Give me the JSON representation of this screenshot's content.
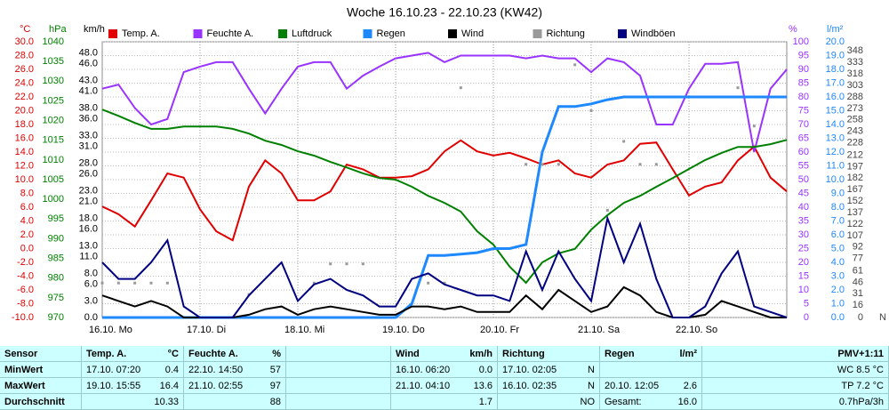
{
  "chart_data": {
    "type": "line",
    "title": "Woche 16.10.23 - 22.10.23 (KW42)",
    "grid": true,
    "xlim": [
      0,
      168
    ],
    "xticks": [
      {
        "value": 0,
        "label": "16.10. Mo"
      },
      {
        "value": 24,
        "label": "17.10. Di"
      },
      {
        "value": 48,
        "label": "18.10. Mi"
      },
      {
        "value": 72,
        "label": "19.10. Do"
      },
      {
        "value": 96,
        "label": "20.10. Fr"
      },
      {
        "value": 120,
        "label": "21.10. Sa"
      },
      {
        "value": 144,
        "label": "22.10. So"
      }
    ],
    "x": [
      0,
      4,
      8,
      12,
      16,
      20,
      24,
      28,
      32,
      36,
      40,
      44,
      48,
      52,
      56,
      60,
      64,
      68,
      72,
      76,
      80,
      84,
      88,
      92,
      96,
      100,
      104,
      108,
      112,
      116,
      120,
      124,
      128,
      132,
      136,
      140,
      144,
      148,
      152,
      156,
      160,
      164,
      168
    ],
    "axes": {
      "temp": {
        "label": "°C",
        "color": "#e00000",
        "lim": [
          -10,
          30
        ],
        "ticks": [
          {
            "value": -10,
            "label": "-10.0"
          },
          {
            "value": -8,
            "label": "-8.0"
          },
          {
            "value": -6,
            "label": "-6.0"
          },
          {
            "value": -4,
            "label": "-4.0"
          },
          {
            "value": -2,
            "label": "-2.0"
          },
          {
            "value": 0,
            "label": "0.0"
          },
          {
            "value": 2,
            "label": "2.0"
          },
          {
            "value": 4,
            "label": "4.0"
          },
          {
            "value": 6,
            "label": "6.0"
          },
          {
            "value": 8,
            "label": "8.0"
          },
          {
            "value": 10,
            "label": "10.0"
          },
          {
            "value": 12,
            "label": "12.0"
          },
          {
            "value": 14,
            "label": "14.0"
          },
          {
            "value": 16,
            "label": "16.0"
          },
          {
            "value": 18,
            "label": "18.0"
          },
          {
            "value": 20,
            "label": "20.0"
          },
          {
            "value": 22,
            "label": "22.0"
          },
          {
            "value": 24,
            "label": "24.0"
          },
          {
            "value": 26,
            "label": "26.0"
          },
          {
            "value": 28,
            "label": "28.0"
          },
          {
            "value": 30,
            "label": "30.0"
          }
        ]
      },
      "pressure": {
        "label": "hPa",
        "color": "#008000",
        "lim": [
          970,
          1040
        ],
        "ticks": [
          970,
          975,
          980,
          985,
          990,
          995,
          1000,
          1005,
          1010,
          1015,
          1020,
          1025,
          1030,
          1035,
          1040
        ]
      },
      "wind": {
        "label": "km/h",
        "color": "#000000",
        "lim": [
          0,
          50
        ],
        "ticks": [
          {
            "value": 0,
            "label": "0.0"
          },
          {
            "value": 3,
            "label": "3.0"
          },
          {
            "value": 6,
            "label": "6.0"
          },
          {
            "value": 8,
            "label": "8.0"
          },
          {
            "value": 11,
            "label": "11.0"
          },
          {
            "value": 13,
            "label": "13.0"
          },
          {
            "value": 16,
            "label": "16.0"
          },
          {
            "value": 18,
            "label": "18.0"
          },
          {
            "value": 21,
            "label": "21.0"
          },
          {
            "value": 23,
            "label": "23.0"
          },
          {
            "value": 26,
            "label": "26.0"
          },
          {
            "value": 28,
            "label": "28.0"
          },
          {
            "value": 31,
            "label": "31.0"
          },
          {
            "value": 33,
            "label": "33.0"
          },
          {
            "value": 36,
            "label": "36.0"
          },
          {
            "value": 38,
            "label": "38.0"
          },
          {
            "value": 41,
            "label": "41.0"
          },
          {
            "value": 43,
            "label": "43.0"
          },
          {
            "value": 46,
            "label": "46.0"
          },
          {
            "value": 48,
            "label": "48.0"
          }
        ]
      },
      "humidity": {
        "label": "%",
        "color": "#9933ff",
        "lim": [
          0,
          100
        ],
        "ticks": [
          0,
          5,
          10,
          15,
          20,
          25,
          30,
          35,
          40,
          45,
          50,
          55,
          60,
          65,
          70,
          75,
          80,
          85,
          90,
          95,
          100
        ]
      },
      "rain": {
        "label": "l/m²",
        "color": "#1e88ff",
        "lim": [
          0,
          20
        ],
        "ticks": [
          {
            "value": 0,
            "label": "0.0"
          },
          {
            "value": 1,
            "label": "1.0"
          },
          {
            "value": 2,
            "label": "2.0"
          },
          {
            "value": 3,
            "label": "3.0"
          },
          {
            "value": 4,
            "label": "4.0"
          },
          {
            "value": 5,
            "label": "5.0"
          },
          {
            "value": 6,
            "label": "6.0"
          },
          {
            "value": 7,
            "label": "7.0"
          },
          {
            "value": 8,
            "label": "8.0"
          },
          {
            "value": 9,
            "label": "9.0"
          },
          {
            "value": 10,
            "label": "10.0"
          },
          {
            "value": 11,
            "label": "11.0"
          },
          {
            "value": 12,
            "label": "12.0"
          },
          {
            "value": 13,
            "label": "13.0"
          },
          {
            "value": 14,
            "label": "14.0"
          },
          {
            "value": 15,
            "label": "15.0"
          },
          {
            "value": 16,
            "label": "16.0"
          },
          {
            "value": 17,
            "label": "17.0"
          },
          {
            "value": 18,
            "label": "18.0"
          },
          {
            "value": 19,
            "label": "19.0"
          },
          {
            "value": 20,
            "label": "20.0"
          }
        ]
      },
      "direction": {
        "label": "N",
        "color": "#444444",
        "lim": [
          0,
          360
        ],
        "ticks": [
          0,
          16,
          31,
          46,
          61,
          77,
          92,
          107,
          122,
          137,
          152,
          167,
          182,
          197,
          212,
          228,
          243,
          258,
          273,
          288,
          303,
          318,
          333,
          348
        ]
      }
    },
    "series": [
      {
        "name": "Temp. A.",
        "color": "#e00000",
        "axis": "temp",
        "values": [
          6.1,
          5,
          3.2,
          7,
          10.9,
          10.3,
          5.7,
          2.5,
          1.2,
          9,
          12.8,
          10.9,
          7,
          7,
          8.3,
          12.2,
          11.5,
          10.3,
          10.3,
          10.5,
          11.5,
          14.1,
          15.7,
          14.1,
          13.5,
          13.9,
          13.1,
          12.2,
          12.8,
          10.9,
          10.3,
          12.2,
          12.8,
          15.2,
          15.4,
          11.5,
          7.7,
          9,
          9.6,
          12.8,
          14.8,
          10.3,
          8.3
        ]
      },
      {
        "name": "Feuchte A.",
        "color": "#9933ff",
        "axis": "humidity",
        "values": [
          83,
          84.5,
          76,
          70,
          72,
          89,
          91,
          92.6,
          92.6,
          83,
          74,
          83,
          91,
          92.6,
          92.6,
          83,
          87.7,
          91,
          94,
          95,
          96,
          92.6,
          95,
          95,
          95,
          95,
          94,
          95,
          94,
          94,
          89,
          94,
          92.6,
          87.7,
          70,
          70,
          83,
          92,
          92,
          92.6,
          60,
          83,
          90
        ]
      },
      {
        "name": "Luftdruck",
        "color": "#008000",
        "axis": "pressure",
        "values": [
          1022.8,
          1021.2,
          1019.4,
          1017.9,
          1017.9,
          1018.5,
          1018.5,
          1018.5,
          1017.9,
          1016.7,
          1014.9,
          1013.8,
          1012.2,
          1011.1,
          1009.5,
          1008.1,
          1006.6,
          1005.4,
          1005,
          1003.2,
          1000.9,
          999.1,
          996.9,
          991.9,
          988.5,
          982.9,
          978.8,
          984,
          986.3,
          987.4,
          992.3,
          996,
          999.1,
          1000.9,
          1003.2,
          1005.4,
          1007.7,
          1010,
          1011.8,
          1013.3,
          1013.3,
          1014,
          1015.1
        ]
      },
      {
        "name": "Regen",
        "color": "#1e88ff",
        "axis": "rain",
        "values": [
          0,
          0,
          0,
          0,
          0,
          0,
          0,
          0,
          0,
          0,
          0,
          0,
          0,
          0,
          0,
          0,
          0,
          0,
          0,
          1,
          4.5,
          4.5,
          4.6,
          4.7,
          5,
          5,
          5.3,
          12,
          15.3,
          15.3,
          15.5,
          15.8,
          16,
          16,
          16,
          16,
          16,
          16,
          16,
          16,
          16,
          16,
          16
        ]
      },
      {
        "name": "Wind",
        "color": "#000000",
        "axis": "wind",
        "values": [
          4,
          3,
          2,
          3,
          2,
          0,
          0,
          0,
          0,
          0.5,
          1.5,
          2,
          0.5,
          1.5,
          2,
          1.5,
          1,
          0.5,
          0.5,
          2,
          2,
          1.5,
          2,
          1,
          1,
          1,
          4,
          1.5,
          5,
          3,
          1,
          2,
          5.5,
          4,
          1,
          0,
          0,
          0.5,
          3,
          2,
          1,
          0,
          0
        ]
      },
      {
        "name": "Richtung",
        "color": "#999999",
        "axis": "direction",
        "marker": "dots",
        "values": [
          45,
          45,
          45,
          45,
          45,
          null,
          null,
          null,
          null,
          30,
          null,
          null,
          null,
          45,
          70,
          70,
          70,
          null,
          null,
          null,
          45,
          45,
          300,
          null,
          null,
          null,
          200,
          200,
          200,
          330,
          270,
          140,
          230,
          200,
          200,
          null,
          null,
          null,
          null,
          300,
          250,
          null,
          null
        ]
      },
      {
        "name": "Windböen",
        "color": "#000080",
        "axis": "wind",
        "values": [
          10,
          7,
          7,
          10,
          14,
          2,
          0,
          0,
          0,
          4,
          7,
          10,
          3,
          6,
          7,
          5,
          4,
          2,
          2,
          7,
          8,
          6,
          5,
          4,
          4,
          3,
          12,
          5,
          12,
          7,
          3,
          18,
          10,
          17,
          7,
          0,
          0,
          2,
          8,
          12,
          2,
          1,
          0
        ]
      }
    ]
  },
  "table": {
    "rows": [
      [
        "Sensor",
        [
          "Temp. A.",
          "°C"
        ],
        [
          "Feuchte A.",
          "%"
        ],
        null,
        [
          "Wind",
          "km/h"
        ],
        [
          "Richtung",
          null
        ],
        [
          "Regen",
          "l/m²"
        ],
        "PMV+1:11"
      ],
      [
        "MinWert",
        [
          "17.10. 07:20",
          "0.4"
        ],
        [
          "22.10. 14:50",
          "57"
        ],
        null,
        [
          "16.10. 06:20",
          "0.0"
        ],
        [
          "17.10. 02:05",
          "N"
        ],
        null,
        "WC 8.5 °C"
      ],
      [
        "MaxWert",
        [
          "19.10. 15:55",
          "16.4"
        ],
        [
          "21.10. 02:55",
          "97"
        ],
        null,
        [
          "21.10. 04:10",
          "13.6"
        ],
        [
          "16.10. 02:35",
          "N"
        ],
        [
          "20.10. 12:05",
          "2.6"
        ],
        "TP 7.2 °C"
      ],
      [
        "Durchschnitt",
        [
          null,
          "10.33"
        ],
        [
          null,
          "88"
        ],
        null,
        [
          null,
          "1.7"
        ],
        [
          null,
          "NO"
        ],
        [
          "Gesamt:",
          "16.0"
        ],
        "0.7hPa/3h"
      ]
    ]
  }
}
